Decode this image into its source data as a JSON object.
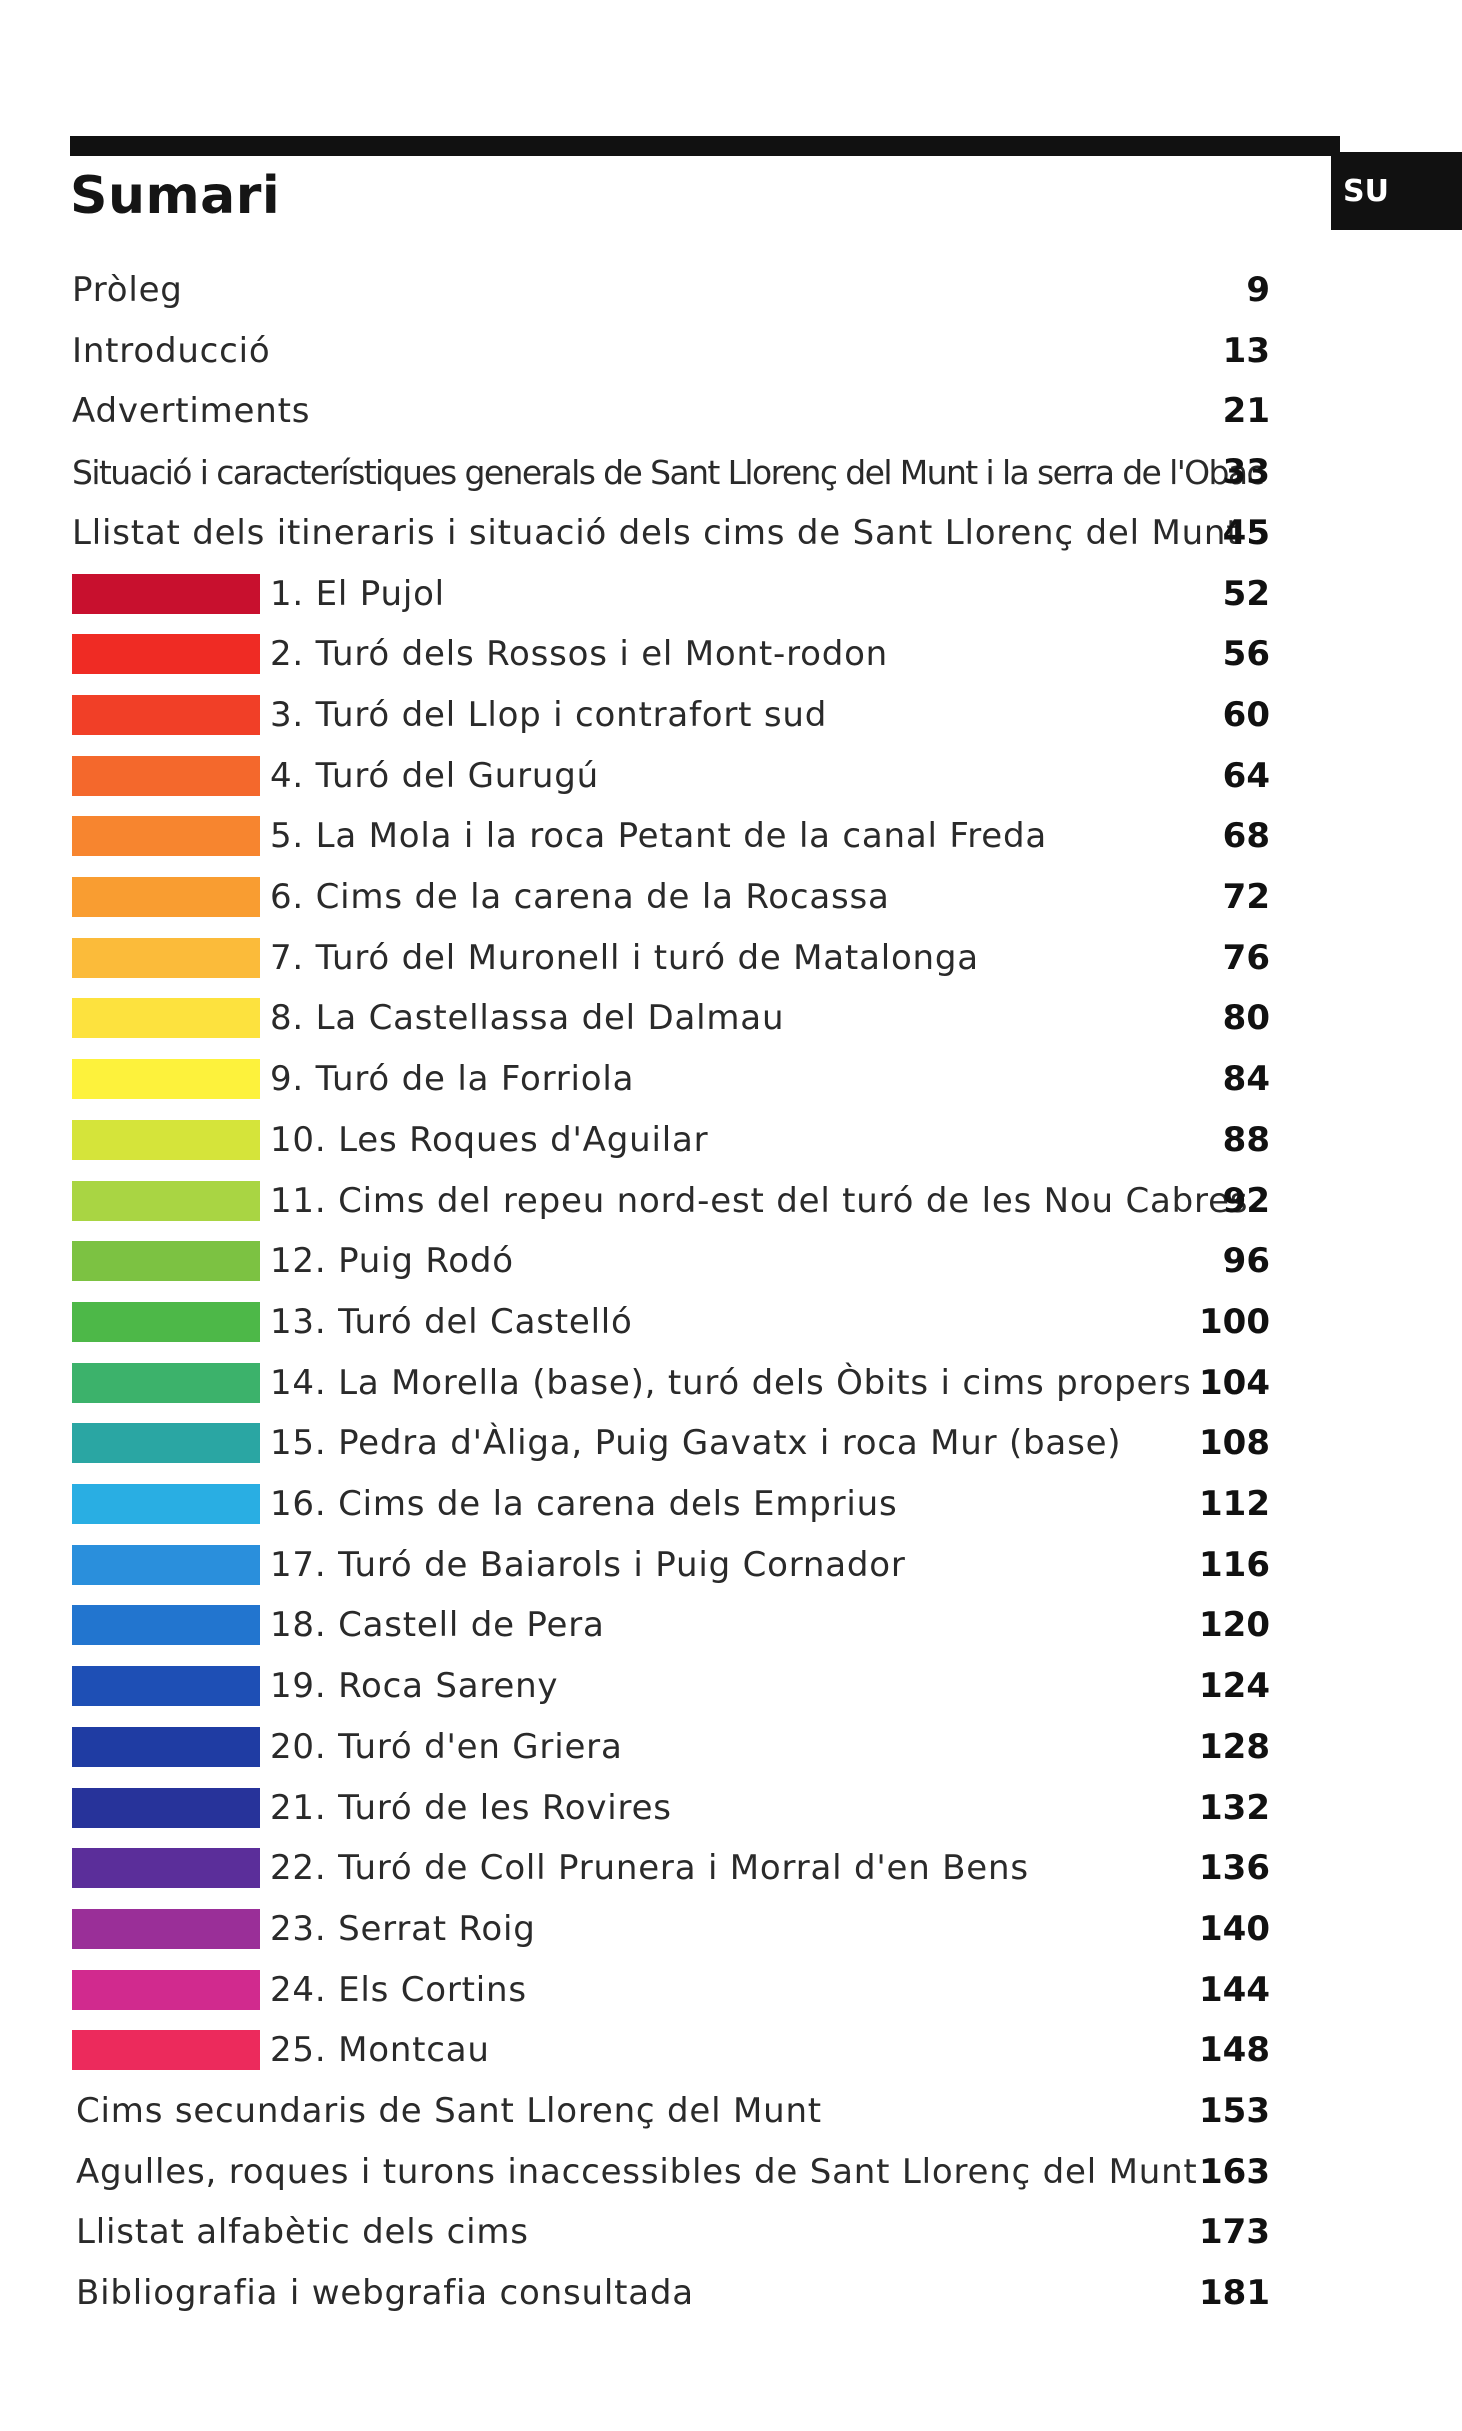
{
  "header": {
    "title": "Sumari",
    "tab": "SU"
  },
  "front": [
    {
      "label": "Pròleg",
      "page": "9"
    },
    {
      "label": "Introducció",
      "page": "13"
    },
    {
      "label": "Advertiments",
      "page": "21"
    },
    {
      "label": "Situació i característiques generals de Sant Llorenç del Munt i la serra de l'Obac",
      "page": "33"
    },
    {
      "label": "Llistat dels itineraris i situació dels cims de Sant Llorenç del Munt",
      "page": "45"
    }
  ],
  "routes": [
    {
      "label": "1. El Pujol",
      "page": "52",
      "color": "#c8102e"
    },
    {
      "label": "2. Turó dels Rossos i el Mont-rodon",
      "page": "56",
      "color": "#ef2b24"
    },
    {
      "label": "3. Turó del Llop i contrafort sud",
      "page": "60",
      "color": "#f13f27"
    },
    {
      "label": "4. Turó del Gurugú",
      "page": "64",
      "color": "#f4682c"
    },
    {
      "label": "5. La Mola i la roca Petant de la canal Freda",
      "page": "68",
      "color": "#f7852f"
    },
    {
      "label": "6. Cims de la carena de la Rocassa",
      "page": "72",
      "color": "#f99d31"
    },
    {
      "label": "7. Turó del Muronell i turó de Matalonga",
      "page": "76",
      "color": "#fbbb3a"
    },
    {
      "label": "8. La Castellassa del Dalmau",
      "page": "80",
      "color": "#fde23e"
    },
    {
      "label": "9. Turó de la Forriola",
      "page": "84",
      "color": "#fdf23c"
    },
    {
      "label": "10. Les Roques d'Aguilar",
      "page": "88",
      "color": "#d5e43a"
    },
    {
      "label": "11. Cims del repeu nord-est del turó de les Nou Cabres",
      "page": "92",
      "color": "#a9d543"
    },
    {
      "label": "12. Puig Rodó",
      "page": "96",
      "color": "#7cc242"
    },
    {
      "label": "13. Turó del Castelló",
      "page": "100",
      "color": "#4db848"
    },
    {
      "label": "14. La Morella (base), turó dels Òbits i cims propers",
      "page": "104",
      "color": "#3cb26b"
    },
    {
      "label": "15. Pedra d'Àliga, Puig Gavatx i roca Mur (base)",
      "page": "108",
      "color": "#2aa6a3"
    },
    {
      "label": "16. Cims de la carena dels Emprius",
      "page": "112",
      "color": "#29aee3"
    },
    {
      "label": "17. Turó de Baiarols i Puig Cornador",
      "page": "116",
      "color": "#2a8fdc"
    },
    {
      "label": "18. Castell de Pera",
      "page": "120",
      "color": "#2275cf"
    },
    {
      "label": "19. Roca Sareny",
      "page": "124",
      "color": "#1e4fb5"
    },
    {
      "label": "20. Turó d'en Griera",
      "page": "128",
      "color": "#1f3ca3"
    },
    {
      "label": "21. Turó de les Rovires",
      "page": "132",
      "color": "#27339a"
    },
    {
      "label": "22. Turó de Coll Prunera i Morral d'en Bens",
      "page": "136",
      "color": "#5b2e9a"
    },
    {
      "label": "23. Serrat Roig",
      "page": "140",
      "color": "#9a2f98"
    },
    {
      "label": "24. Els Cortins",
      "page": "144",
      "color": "#d12a8e"
    },
    {
      "label": "25. Montcau",
      "page": "148",
      "color": "#ec2a5c"
    }
  ],
  "back": [
    {
      "label": "Cims secundaris de Sant Llorenç del Munt",
      "page": "153"
    },
    {
      "label": "Agulles, roques i turons inaccessibles de Sant Llorenç del Munt",
      "page": "163"
    },
    {
      "label": "Llistat alfabètic dels cims",
      "page": "173"
    },
    {
      "label": "Bibliografia i webgrafia consultada",
      "page": "181"
    }
  ]
}
